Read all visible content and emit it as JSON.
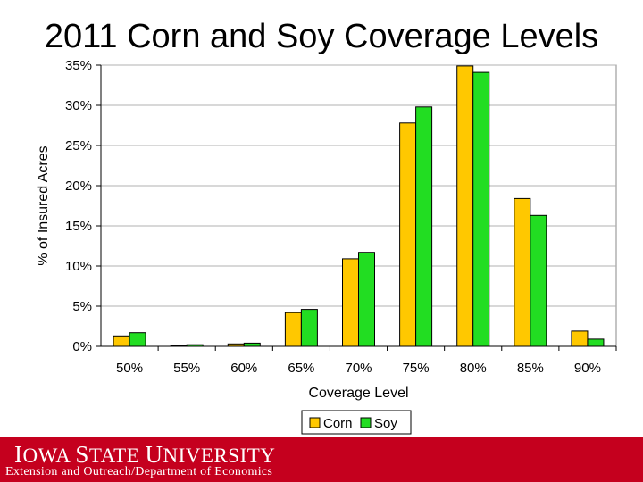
{
  "slide": {
    "title": "2011 Corn and Soy Coverage Levels"
  },
  "footer": {
    "logo_text": "Iowa State University",
    "subtitle": "Extension and Outreach/Department of Economics",
    "color": "#c5001e"
  },
  "chart_data": {
    "type": "bar",
    "title": "",
    "xlabel": "Coverage Level",
    "ylabel": "% of Insured Acres",
    "ylim": [
      0,
      35
    ],
    "yticks": [
      "0%",
      "5%",
      "10%",
      "15%",
      "20%",
      "25%",
      "30%",
      "35%"
    ],
    "ytick_values": [
      0,
      5,
      10,
      15,
      20,
      25,
      30,
      35
    ],
    "categories": [
      "50%",
      "55%",
      "60%",
      "65%",
      "70%",
      "75%",
      "80%",
      "85%",
      "90%"
    ],
    "grid": true,
    "legend_position": "bottom-center",
    "series": [
      {
        "name": "Corn",
        "color": "#ffc800",
        "values": [
          1.3,
          0.1,
          0.3,
          4.2,
          10.9,
          27.8,
          34.9,
          18.4,
          1.9
        ]
      },
      {
        "name": "Soy",
        "color": "#22dd22",
        "values": [
          1.7,
          0.2,
          0.4,
          4.6,
          11.7,
          29.8,
          34.1,
          16.3,
          0.9
        ]
      }
    ]
  }
}
